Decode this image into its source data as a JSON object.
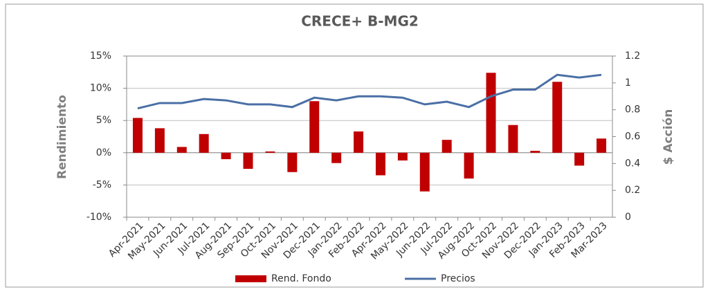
{
  "chart_data": {
    "type": "bar",
    "title": "CRECE+ B-MG2",
    "y_label": "Rendimiento",
    "y2_label": "$ Acción",
    "categories": [
      "Apr-2021",
      "May-2021",
      "Jun-2021",
      "Jul-2021",
      "Aug-2021",
      "Sep-2021",
      "Oct-2021",
      "Nov-2021",
      "Dec-2021",
      "Jan-2022",
      "Feb-2022",
      "Apr-2022",
      "May-2022",
      "Jun-2022",
      "Jul-2022",
      "Aug-2022",
      "Oct-2022",
      "Nov-2022",
      "Dec-2022",
      "Jan-2023",
      "Feb-2023",
      "Mar-2023"
    ],
    "series": [
      {
        "name": "Rend. Fondo",
        "type": "bar",
        "color": "#c00000",
        "values": [
          5.4,
          3.8,
          0.9,
          2.9,
          -1.0,
          -2.5,
          0.2,
          -3.0,
          8.0,
          -1.6,
          3.3,
          -3.5,
          -1.2,
          -6.0,
          2.0,
          -4.0,
          12.4,
          4.3,
          0.3,
          11.0,
          -2.0,
          2.2
        ]
      },
      {
        "name": "Precios",
        "type": "line",
        "axis": "y2",
        "color": "#4a6fa5",
        "values": [
          0.81,
          0.85,
          0.85,
          0.88,
          0.87,
          0.84,
          0.84,
          0.82,
          0.89,
          0.87,
          0.9,
          0.9,
          0.89,
          0.84,
          0.86,
          0.82,
          0.9,
          0.95,
          0.95,
          1.06,
          1.04,
          1.06
        ]
      }
    ],
    "ylim": [
      -10,
      15
    ],
    "yticks": [
      {
        "value": -10,
        "label": "-10%"
      },
      {
        "value": -5,
        "label": "-5%"
      },
      {
        "value": 0,
        "label": "0%"
      },
      {
        "value": 5,
        "label": "5%"
      },
      {
        "value": 10,
        "label": "10%"
      },
      {
        "value": 15,
        "label": "15%"
      }
    ],
    "y2lim": [
      0,
      1.2
    ],
    "y2ticks": [
      0,
      0.2,
      0.4,
      0.6,
      0.8,
      1,
      1.2
    ],
    "grid": true,
    "legend": "bottom"
  }
}
